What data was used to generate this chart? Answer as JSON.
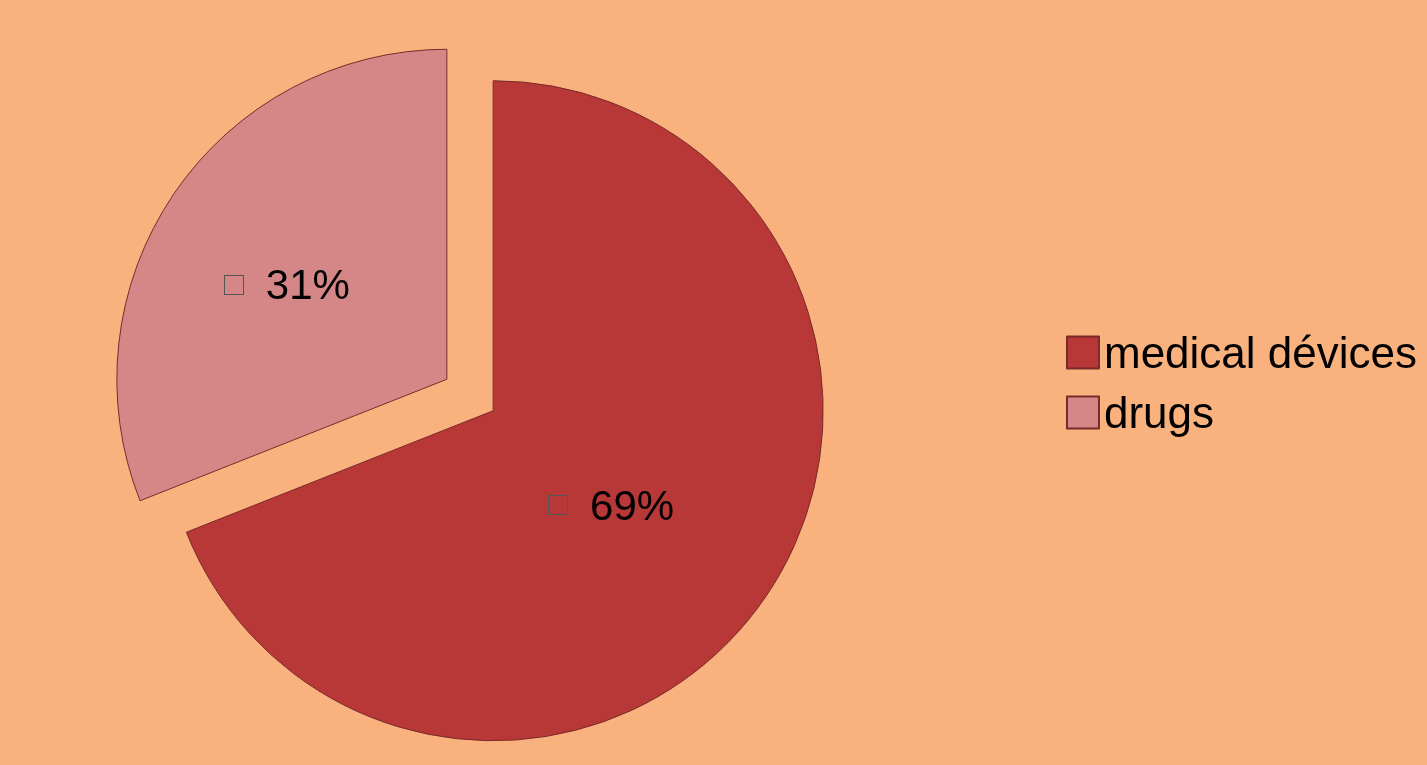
{
  "chart_data": {
    "type": "pie",
    "categories": [
      "medical dévices",
      "drugs"
    ],
    "values": [
      69,
      31
    ],
    "colors": [
      "#b83737",
      "#d58787"
    ],
    "value_labels": [
      "69%",
      "31%"
    ],
    "legend": "right"
  }
}
